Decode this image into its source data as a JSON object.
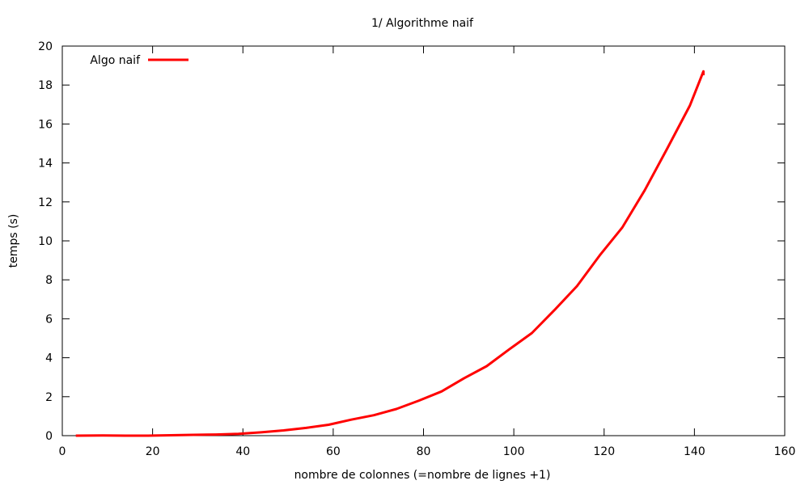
{
  "chart_data": {
    "type": "line",
    "title": "1/ Algorithme naif",
    "xlabel": "nombre de colonnes (=nombre de lignes +1)",
    "ylabel": "temps (s)",
    "xlim": [
      0,
      160
    ],
    "ylim": [
      0,
      20
    ],
    "xticks": [
      0,
      20,
      40,
      60,
      80,
      100,
      120,
      140,
      160
    ],
    "yticks": [
      0,
      2,
      4,
      6,
      8,
      10,
      12,
      14,
      16,
      18,
      20
    ],
    "grid": false,
    "legend_position": "top-left",
    "series": [
      {
        "name": "Algo naif",
        "color": "#ff0000",
        "x": [
          3,
          9,
          14,
          19,
          24,
          29,
          34,
          39,
          44,
          49,
          54,
          59,
          64,
          69,
          74,
          79,
          84,
          89,
          94,
          99,
          104,
          109,
          114,
          119,
          124,
          129,
          134,
          139,
          142,
          142
        ],
        "y": [
          0,
          0.01,
          0,
          0,
          0.02,
          0.04,
          0.06,
          0.09,
          0.17,
          0.27,
          0.4,
          0.56,
          0.82,
          1.05,
          1.37,
          1.8,
          2.27,
          2.95,
          3.57,
          4.43,
          5.27,
          6.45,
          7.68,
          9.25,
          10.68,
          12.6,
          14.75,
          16.95,
          18.7,
          18.5
        ]
      }
    ]
  }
}
